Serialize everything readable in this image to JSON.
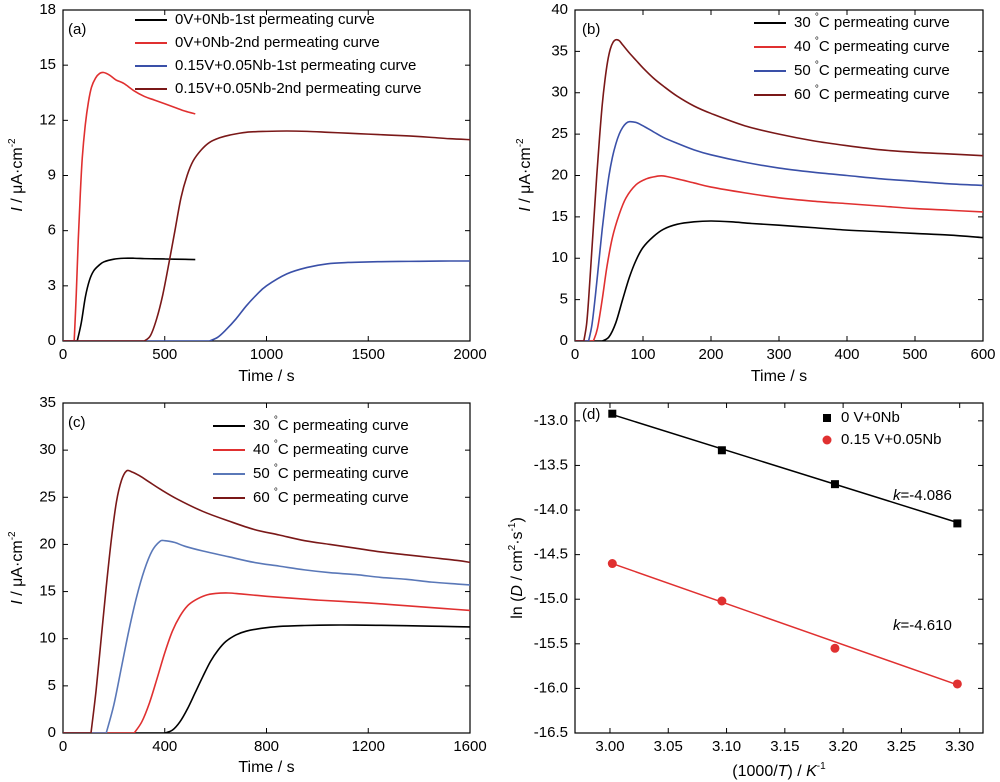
{
  "figure": {
    "panels": [
      {
        "label": "(a)",
        "type": "line",
        "xlabel": "Time / s",
        "ylabel": {
          "italic": "I",
          "rest": " / μA·cm",
          "sup": "-2"
        },
        "xlim": [
          0,
          2000
        ],
        "ylim": [
          0,
          18
        ],
        "xticks": [
          "0",
          "500",
          "1000",
          "1500",
          "2000"
        ],
        "yticks": [
          "0",
          "3",
          "6",
          "9",
          "12",
          "15",
          "18"
        ],
        "legend": [
          {
            "name": "0V+0Nb-1st permeating curve",
            "color": "#000000"
          },
          {
            "name": "0V+0Nb-2nd permeating curve",
            "color": "#e03030"
          },
          {
            "name": "0.15V+0.05Nb-1st permeating curve",
            "color": "#3a50a8"
          },
          {
            "name": "0.15V+0.05Nb-2nd permeating curve",
            "color": "#7a1818"
          }
        ],
        "series": [
          {
            "name": "0V+0Nb-1st permeating curve",
            "color": "#000000",
            "x": [
              70,
              90,
              110,
              130,
              150,
              175,
              200,
              250,
              300,
              350,
              400,
              450,
              500,
              550,
              600,
              650
            ],
            "y": [
              0,
              1.0,
              2.4,
              3.3,
              3.8,
              4.1,
              4.3,
              4.45,
              4.5,
              4.5,
              4.48,
              4.47,
              4.46,
              4.45,
              4.44,
              4.43
            ]
          },
          {
            "name": "0V+0Nb-2nd permeating curve",
            "color": "#e03030",
            "x": [
              55,
              65,
              75,
              85,
              95,
              110,
              125,
              140,
              160,
              180,
              200,
              230,
              260,
              300,
              350,
              400,
              450,
              500,
              550,
              600,
              650
            ],
            "y": [
              0,
              2.5,
              5.5,
              8.0,
              10.0,
              11.8,
              13.0,
              13.8,
              14.3,
              14.55,
              14.6,
              14.45,
              14.2,
              14.0,
              13.6,
              13.3,
              13.1,
              12.9,
              12.7,
              12.5,
              12.35
            ]
          },
          {
            "name": "0.15V+0.05Nb-1st permeating curve",
            "color": "#3a50a8",
            "x": [
              720,
              760,
              800,
              850,
              900,
              950,
              1000,
              1100,
              1200,
              1300,
              1400,
              1500,
              1600,
              1700,
              1800,
              1900,
              2000
            ],
            "y": [
              0,
              0.2,
              0.6,
              1.2,
              1.9,
              2.5,
              3.0,
              3.65,
              4.0,
              4.2,
              4.27,
              4.3,
              4.32,
              4.33,
              4.34,
              4.35,
              4.35
            ]
          },
          {
            "name": "0.15V+0.05Nb-2nd permeating curve",
            "color": "#7a1818",
            "x": [
              400,
              430,
              460,
              490,
              520,
              550,
              580,
              610,
              640,
              680,
              720,
              770,
              820,
              900,
              1000,
              1100,
              1200,
              1300,
              1400,
              1500,
              1600,
              1700,
              1800,
              1900,
              2000
            ],
            "y": [
              0,
              0.3,
              1.2,
              2.5,
              4.2,
              6.0,
              7.8,
              9.0,
              9.8,
              10.4,
              10.8,
              11.05,
              11.2,
              11.35,
              11.4,
              11.42,
              11.4,
              11.35,
              11.3,
              11.25,
              11.2,
              11.15,
              11.08,
              11.0,
              10.95
            ]
          }
        ]
      },
      {
        "label": "(b)",
        "type": "line",
        "xlabel": "Time / s",
        "ylabel": {
          "italic": "I",
          "rest": " / μA·cm",
          "sup": "-2"
        },
        "xlim": [
          0,
          600
        ],
        "ylim": [
          0,
          40
        ],
        "xticks": [
          "0",
          "100",
          "200",
          "300",
          "400",
          "500",
          "600"
        ],
        "yticks": [
          "0",
          "5",
          "10",
          "15",
          "20",
          "25",
          "30",
          "35",
          "40"
        ],
        "legend": [
          {
            "name": "30 °C permeating curve",
            "color": "#000000"
          },
          {
            "name": "40 °C permeating curve",
            "color": "#e03030"
          },
          {
            "name": "50 °C permeating curve",
            "color": "#3a50a8"
          },
          {
            "name": "60 °C permeating curve",
            "color": "#7a1818"
          }
        ],
        "series": [
          {
            "name": "30 °C permeating curve",
            "color": "#000000",
            "x": [
              40,
              50,
              60,
              70,
              80,
              90,
              100,
              115,
              130,
              150,
              175,
              200,
              230,
              260,
              300,
              350,
              400,
              450,
              500,
              550,
              600
            ],
            "y": [
              0,
              0.5,
              2.2,
              5.0,
              7.7,
              9.8,
              11.3,
              12.6,
              13.5,
              14.1,
              14.4,
              14.5,
              14.4,
              14.2,
              14.0,
              13.7,
              13.4,
              13.2,
              13.0,
              12.8,
              12.5
            ]
          },
          {
            "name": "40 °C permeating curve",
            "color": "#e03030",
            "x": [
              27,
              33,
              40,
              47,
              55,
              65,
              75,
              90,
              105,
              120,
              130,
              150,
              175,
              200,
              250,
              300,
              350,
              400,
              450,
              500,
              550,
              600
            ],
            "y": [
              0,
              1.5,
              5.0,
              9.0,
              12.5,
              15.3,
              17.3,
              18.9,
              19.6,
              19.9,
              19.95,
              19.6,
              19.1,
              18.6,
              17.9,
              17.3,
              16.9,
              16.6,
              16.3,
              16.0,
              15.8,
              15.6
            ]
          },
          {
            "name": "50 °C permeating curve",
            "color": "#3a50a8",
            "x": [
              20,
              25,
              30,
              35,
              40,
              45,
              50,
              55,
              60,
              65,
              70,
              75,
              80,
              90,
              100,
              115,
              130,
              150,
              175,
              200,
              250,
              300,
              350,
              400,
              450,
              500,
              550,
              600
            ],
            "y": [
              0,
              2.0,
              5.5,
              9.5,
              13.5,
              17.0,
              20.0,
              22.2,
              23.8,
              25.0,
              25.8,
              26.3,
              26.5,
              26.4,
              26.0,
              25.3,
              24.6,
              23.9,
              23.1,
              22.5,
              21.6,
              20.9,
              20.4,
              20.0,
              19.6,
              19.3,
              19.0,
              18.8
            ]
          },
          {
            "name": "60 °C permeating curve",
            "color": "#7a1818",
            "x": [
              13,
              17,
              20,
              24,
              28,
              32,
              36,
              40,
              44,
              48,
              52,
              56,
              60,
              65,
              70,
              80,
              90,
              100,
              115,
              130,
              150,
              175,
              200,
              250,
              300,
              350,
              400,
              450,
              500,
              550,
              600
            ],
            "y": [
              0,
              2.0,
              5.0,
              10.0,
              15.0,
              20.0,
              24.5,
              28.5,
              31.5,
              33.8,
              35.3,
              36.1,
              36.4,
              36.3,
              35.8,
              34.8,
              33.9,
              33.0,
              31.8,
              30.8,
              29.6,
              28.4,
              27.5,
              26.0,
              25.0,
              24.2,
              23.6,
              23.1,
              22.8,
              22.6,
              22.4
            ]
          }
        ]
      },
      {
        "label": "(c)",
        "type": "line",
        "xlabel": "Time / s",
        "ylabel": {
          "italic": "I",
          "rest": " / μA·cm",
          "sup": "-2"
        },
        "xlim": [
          0,
          1600
        ],
        "ylim": [
          0,
          35
        ],
        "xticks": [
          "0",
          "400",
          "800",
          "1200",
          "1600"
        ],
        "yticks": [
          "0",
          "5",
          "10",
          "15",
          "20",
          "25",
          "30",
          "35"
        ],
        "legend": [
          {
            "name": "30 °C permeating curve",
            "color": "#000000"
          },
          {
            "name": "40 °C permeating curve",
            "color": "#e03030"
          },
          {
            "name": "50 °C permeating curve",
            "color": "#5a78b8"
          },
          {
            "name": "60 °C permeating curve",
            "color": "#7a1818"
          }
        ],
        "series": [
          {
            "name": "30 °C permeating curve",
            "color": "#000000",
            "x": [
              400,
              430,
              460,
              490,
              520,
              550,
              580,
              610,
              640,
              680,
              720,
              780,
              850,
              950,
              1050,
              1150,
              1250,
              1350,
              1450,
              1550,
              1600
            ],
            "y": [
              0,
              0.3,
              1.2,
              2.6,
              4.3,
              6.0,
              7.6,
              8.8,
              9.7,
              10.4,
              10.8,
              11.1,
              11.3,
              11.4,
              11.45,
              11.45,
              11.42,
              11.38,
              11.33,
              11.28,
              11.25
            ]
          },
          {
            "name": "40 °C permeating curve",
            "color": "#e03030",
            "x": [
              280,
              310,
              340,
              370,
              400,
              430,
              460,
              490,
              520,
              560,
              600,
              650,
              700,
              800,
              900,
              1000,
              1100,
              1200,
              1300,
              1400,
              1500,
              1600
            ],
            "y": [
              0,
              1.2,
              3.2,
              5.8,
              8.5,
              10.8,
              12.4,
              13.5,
              14.1,
              14.6,
              14.8,
              14.85,
              14.75,
              14.5,
              14.3,
              14.1,
              13.95,
              13.8,
              13.6,
              13.4,
              13.2,
              13.0
            ]
          },
          {
            "name": "50 °C permeating curve",
            "color": "#5a78b8",
            "x": [
              170,
              200,
              230,
              260,
              290,
              320,
              350,
              380,
              400,
              440,
              480,
              550,
              650,
              750,
              850,
              950,
              1050,
              1150,
              1250,
              1350,
              1450,
              1550,
              1600
            ],
            "y": [
              0,
              3.0,
              7.0,
              11.0,
              14.5,
              17.3,
              19.3,
              20.3,
              20.4,
              20.2,
              19.8,
              19.3,
              18.7,
              18.1,
              17.7,
              17.3,
              17.0,
              16.8,
              16.5,
              16.3,
              16.0,
              15.8,
              15.7
            ]
          },
          {
            "name": "60 °C permeating curve",
            "color": "#7a1818",
            "x": [
              110,
              130,
              150,
              170,
              190,
              210,
              230,
              250,
              270,
              300,
              340,
              380,
              450,
              550,
              650,
              750,
              850,
              950,
              1050,
              1150,
              1250,
              1350,
              1450,
              1550,
              1600
            ],
            "y": [
              0,
              4.5,
              10.0,
              15.5,
              20.5,
              24.5,
              26.8,
              27.8,
              27.7,
              27.3,
              26.6,
              25.9,
              24.8,
              23.5,
              22.5,
              21.6,
              21.0,
              20.4,
              20.0,
              19.6,
              19.2,
              18.9,
              18.6,
              18.3,
              18.1
            ]
          }
        ]
      },
      {
        "label": "(d)",
        "type": "scatter",
        "xlabel": {
          "pre": "(1000/",
          "italic": "T",
          "mid": ") / ",
          "italic2": "K",
          "sup": "-1"
        },
        "ylabel": {
          "pre": "ln (",
          "italic": "D",
          "mid": " / cm",
          "sup1": "2",
          "mid2": "·s",
          "sup2": "-1",
          "post": ")"
        },
        "xlim": [
          2.97,
          3.32
        ],
        "ylim": [
          -16.5,
          -12.8
        ],
        "xticks": [
          "3.00",
          "3.05",
          "3.10",
          "3.15",
          "3.20",
          "3.25",
          "3.30"
        ],
        "yticks": [
          "-13.0",
          "-13.5",
          "-14.0",
          "-14.5",
          "-15.0",
          "-15.5",
          "-16.0",
          "-16.5"
        ],
        "legend": [
          {
            "name": "0 V+0Nb",
            "color": "#000000",
            "marker": "square"
          },
          {
            "name": "0.15 V+0.05Nb",
            "color": "#e03030",
            "marker": "circle"
          }
        ],
        "series": [
          {
            "name": "0 V+0Nb",
            "color": "#000000",
            "marker": "square",
            "x": [
              3.002,
              3.096,
              3.193,
              3.298
            ],
            "y": [
              -12.92,
              -13.33,
              -13.71,
              -14.15
            ],
            "fit": {
              "x": [
                3.002,
                3.298
              ],
              "y": [
                -12.93,
                -14.14
              ]
            },
            "k_label": "=-4.086"
          },
          {
            "name": "0.15 V+0.05Nb",
            "color": "#e03030",
            "marker": "circle",
            "x": [
              3.002,
              3.096,
              3.193,
              3.298
            ],
            "y": [
              -14.6,
              -15.02,
              -15.55,
              -15.95
            ],
            "fit": {
              "x": [
                3.002,
                3.298
              ],
              "y": [
                -14.6,
                -15.96
              ]
            },
            "k_label": "=-4.610"
          }
        ]
      }
    ]
  }
}
